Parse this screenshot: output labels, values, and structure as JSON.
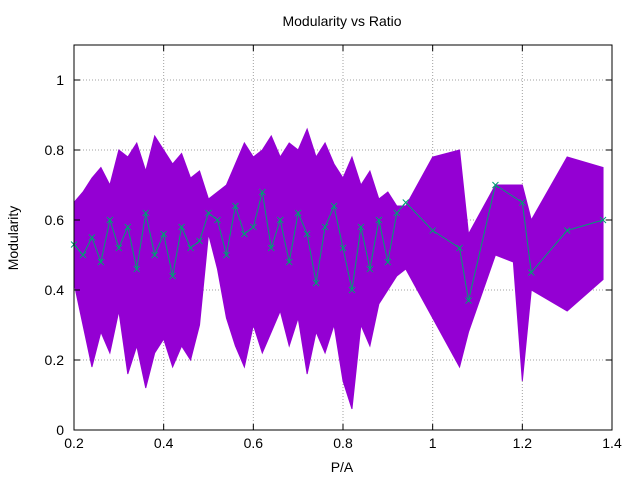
{
  "chart_data": {
    "type": "line",
    "title": "Modularity vs Ratio",
    "xlabel": "P/A",
    "ylabel": "Modularity",
    "xlim": [
      0.2,
      1.4
    ],
    "ylim": [
      0,
      1.1
    ],
    "xticks": [
      0.2,
      0.4,
      0.6,
      0.8,
      1,
      1.2,
      1.4
    ],
    "xtick_labels": [
      "0.2",
      "0.4",
      "0.6",
      "0.8",
      "1",
      "1.2",
      "1.4"
    ],
    "yticks": [
      0,
      0.2,
      0.4,
      0.6,
      0.8,
      1
    ],
    "ytick_labels": [
      "0",
      "0.2",
      "0.4",
      "0.6",
      "0.8",
      "1"
    ],
    "grid": true,
    "legend": "none",
    "colors": {
      "band": "#9400d3",
      "line": "#009e73"
    },
    "series": [
      {
        "kind": "band",
        "x": [
          0.2,
          0.22,
          0.24,
          0.26,
          0.28,
          0.3,
          0.32,
          0.34,
          0.36,
          0.38,
          0.4,
          0.42,
          0.44,
          0.46,
          0.48,
          0.5,
          0.52,
          0.54,
          0.56,
          0.58,
          0.6,
          0.62,
          0.64,
          0.66,
          0.68,
          0.7,
          0.72,
          0.74,
          0.76,
          0.78,
          0.8,
          0.82,
          0.84,
          0.86,
          0.88,
          0.9,
          0.92,
          0.94,
          1.0,
          1.06,
          1.08,
          1.14,
          1.18,
          1.2,
          1.22,
          1.3,
          1.38
        ],
        "high": [
          0.65,
          0.68,
          0.72,
          0.75,
          0.7,
          0.8,
          0.78,
          0.82,
          0.74,
          0.84,
          0.8,
          0.76,
          0.79,
          0.72,
          0.74,
          0.66,
          0.68,
          0.7,
          0.76,
          0.82,
          0.78,
          0.8,
          0.84,
          0.78,
          0.82,
          0.8,
          0.86,
          0.78,
          0.82,
          0.76,
          0.72,
          0.78,
          0.7,
          0.74,
          0.66,
          0.68,
          0.64,
          0.64,
          0.78,
          0.8,
          0.56,
          0.7,
          0.7,
          0.7,
          0.6,
          0.78,
          0.75
        ],
        "low": [
          0.42,
          0.3,
          0.18,
          0.28,
          0.22,
          0.34,
          0.16,
          0.24,
          0.12,
          0.22,
          0.26,
          0.18,
          0.24,
          0.2,
          0.3,
          0.56,
          0.46,
          0.32,
          0.24,
          0.18,
          0.3,
          0.22,
          0.28,
          0.34,
          0.24,
          0.32,
          0.16,
          0.28,
          0.22,
          0.3,
          0.14,
          0.06,
          0.3,
          0.24,
          0.36,
          0.4,
          0.44,
          0.46,
          0.32,
          0.18,
          0.28,
          0.5,
          0.48,
          0.14,
          0.4,
          0.34,
          0.43
        ]
      },
      {
        "kind": "line",
        "x": [
          0.2,
          0.22,
          0.24,
          0.26,
          0.28,
          0.3,
          0.32,
          0.34,
          0.36,
          0.38,
          0.4,
          0.42,
          0.44,
          0.46,
          0.48,
          0.5,
          0.52,
          0.54,
          0.56,
          0.58,
          0.6,
          0.62,
          0.64,
          0.66,
          0.68,
          0.7,
          0.72,
          0.74,
          0.76,
          0.78,
          0.8,
          0.82,
          0.84,
          0.86,
          0.88,
          0.9,
          0.92,
          0.94,
          1.0,
          1.06,
          1.08,
          1.14,
          1.2,
          1.22,
          1.3,
          1.38
        ],
        "y": [
          0.53,
          0.5,
          0.55,
          0.48,
          0.6,
          0.52,
          0.58,
          0.46,
          0.62,
          0.5,
          0.56,
          0.44,
          0.58,
          0.52,
          0.54,
          0.62,
          0.6,
          0.5,
          0.64,
          0.56,
          0.58,
          0.68,
          0.52,
          0.6,
          0.48,
          0.62,
          0.56,
          0.42,
          0.58,
          0.64,
          0.52,
          0.4,
          0.58,
          0.46,
          0.6,
          0.48,
          0.62,
          0.65,
          0.57,
          0.52,
          0.37,
          0.7,
          0.65,
          0.45,
          0.57,
          0.6
        ]
      }
    ]
  }
}
